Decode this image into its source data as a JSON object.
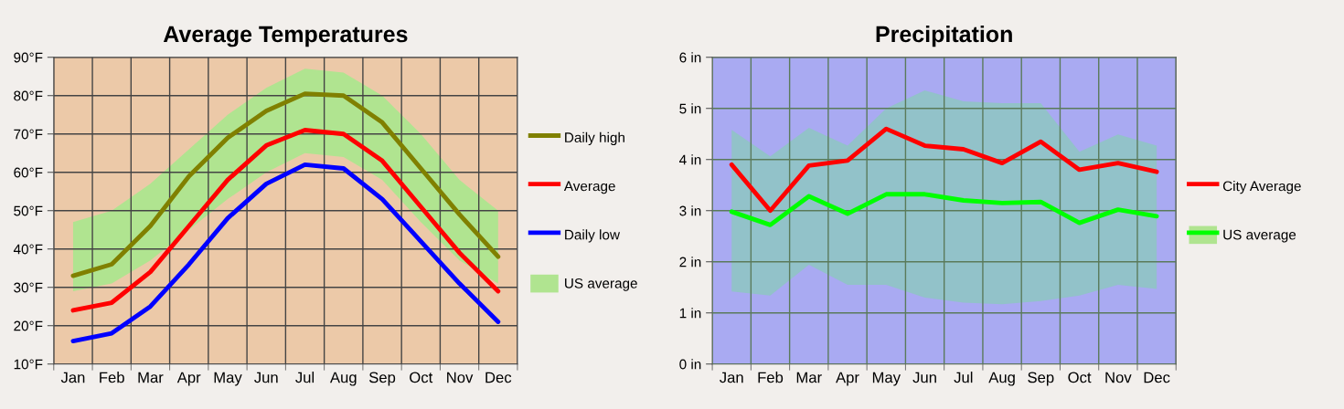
{
  "chart_data": [
    {
      "type": "line",
      "title": "Average Temperatures",
      "categories": [
        "Jan",
        "Feb",
        "Mar",
        "Apr",
        "May",
        "Jun",
        "Jul",
        "Aug",
        "Sep",
        "Oct",
        "Nov",
        "Dec"
      ],
      "series": [
        {
          "name": "Daily high",
          "color": "#808000",
          "values": [
            33,
            36,
            46,
            59,
            69,
            76,
            80.5,
            80,
            73,
            61,
            49,
            38
          ]
        },
        {
          "name": "Average",
          "color": "#ff0000",
          "values": [
            24,
            26,
            34,
            46,
            58,
            67,
            71,
            70,
            63,
            51,
            39,
            29
          ]
        },
        {
          "name": "Daily low",
          "color": "#0000ff",
          "values": [
            16,
            18,
            25,
            36,
            48,
            57,
            62,
            61,
            53,
            42,
            31,
            21
          ]
        },
        {
          "name": "US average",
          "type": "area",
          "color": "#b0e490",
          "values": [
            null,
            null,
            null,
            null,
            null,
            null,
            null,
            null,
            null,
            null,
            null,
            null
          ],
          "lower": [
            29,
            31,
            37,
            45,
            53,
            60,
            65,
            64,
            58,
            47,
            37,
            31
          ],
          "upper": [
            47,
            50,
            57,
            66,
            75,
            82,
            87,
            86,
            80,
            70,
            58,
            50
          ]
        }
      ],
      "ylim": [
        10,
        90
      ],
      "yticks": [
        {
          "value": 10,
          "label": "10°F"
        },
        {
          "value": 20,
          "label": "20°F"
        },
        {
          "value": 30,
          "label": "30°F"
        },
        {
          "value": 40,
          "label": "40°F"
        },
        {
          "value": 50,
          "label": "50°F"
        },
        {
          "value": 60,
          "label": "60°F"
        },
        {
          "value": 70,
          "label": "70°F"
        },
        {
          "value": 80,
          "label": "80°F"
        },
        {
          "value": 90,
          "label": "90°F"
        }
      ],
      "grid": true,
      "legend": "right"
    },
    {
      "type": "line",
      "title": "Precipitation",
      "categories": [
        "Jan",
        "Feb",
        "Mar",
        "Apr",
        "May",
        "Jun",
        "Jul",
        "Aug",
        "Sep",
        "Oct",
        "Nov",
        "Dec"
      ],
      "series": [
        {
          "name": "City Average",
          "color": "#ff0000",
          "values": [
            3.9,
            3.0,
            3.88,
            3.98,
            4.6,
            4.27,
            4.2,
            3.93,
            4.35,
            3.8,
            3.93,
            3.76
          ]
        },
        {
          "name": "US average",
          "color": "#00ff00",
          "values": [
            2.98,
            2.72,
            3.28,
            2.94,
            3.32,
            3.32,
            3.2,
            3.15,
            3.17,
            2.76,
            3.02,
            2.89
          ],
          "lower": [
            1.42,
            1.34,
            1.94,
            1.55,
            1.55,
            1.3,
            1.2,
            1.17,
            1.23,
            1.34,
            1.55,
            1.47
          ],
          "upper": [
            4.58,
            4.06,
            4.62,
            4.27,
            5.0,
            5.35,
            5.14,
            5.1,
            5.1,
            4.15,
            4.49,
            4.27
          ]
        }
      ],
      "ylim": [
        0,
        6
      ],
      "yticks": [
        {
          "value": 0,
          "label": "0 in"
        },
        {
          "value": 1,
          "label": "1 in"
        },
        {
          "value": 2,
          "label": "2 in"
        },
        {
          "value": 3,
          "label": "3 in"
        },
        {
          "value": 4,
          "label": "4 in"
        },
        {
          "value": 5,
          "label": "5 in"
        },
        {
          "value": 6,
          "label": "6 in"
        }
      ],
      "grid": true,
      "legend": "right"
    }
  ]
}
